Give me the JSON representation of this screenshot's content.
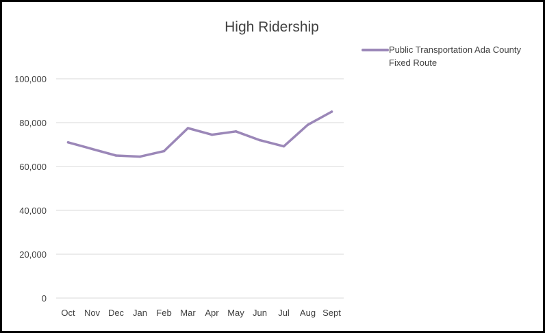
{
  "chart_data": {
    "type": "line",
    "title": "High Ridership",
    "xlabel": "",
    "ylabel": "",
    "categories": [
      "Oct",
      "Nov",
      "Dec",
      "Jan",
      "Feb",
      "Mar",
      "Apr",
      "May",
      "Jun",
      "Jul",
      "Aug",
      "Sept"
    ],
    "series": [
      {
        "name_lines": [
          "Public Transportation Ada County",
          "Fixed Route"
        ],
        "values": [
          71000,
          68000,
          65000,
          64500,
          67000,
          77500,
          74500,
          76000,
          72000,
          69200,
          79000,
          85000
        ],
        "color": "#9b87b8"
      }
    ],
    "y_ticks": [
      "0",
      "20,000",
      "40,000",
      "60,000",
      "80,000",
      "100,000"
    ],
    "ylim": [
      0,
      100000
    ],
    "grid": true,
    "legend_position": "top-right",
    "gridline_color": "#d9d9d9",
    "text_color": "#404040"
  }
}
